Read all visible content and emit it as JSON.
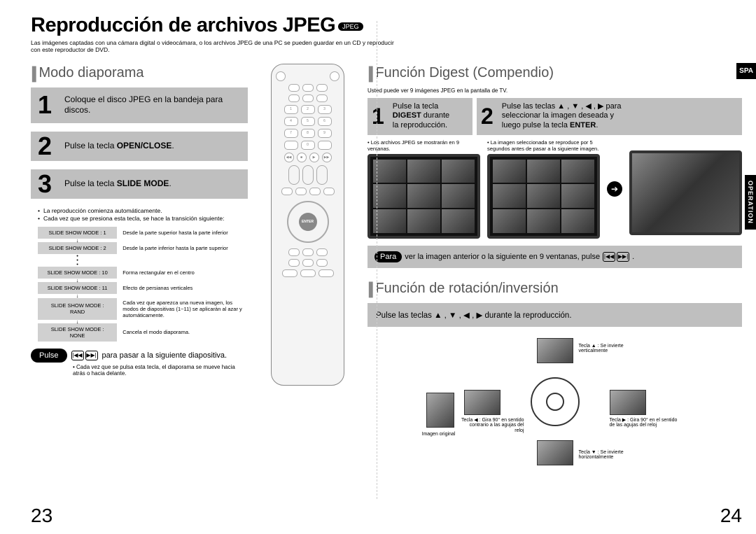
{
  "title": "Reproducción de archivos JPEG",
  "title_badge": "JPEG",
  "intro": "Las imágenes captadas con una cámara digital o videocámara, o los archivos JPEG de una PC se pueden guardar en un CD y reproducir con este reproductor de DVD.",
  "spa_tab": "SPA",
  "op_tab": "OPERATION",
  "page_left": "23",
  "page_right": "24",
  "left": {
    "section_title": "Modo diaporama",
    "step1_pre": "Coloque el disco JPEG en la bandeja para discos.",
    "step2_pre": "Pulse la tecla ",
    "step2_bold": "OPEN/CLOSE",
    "step2_post": ".",
    "step3_pre": "Pulse la tecla ",
    "step3_bold": "SLIDE MODE",
    "step3_post": ".",
    "bullet1": "La reproducción comienza automáticamente.",
    "bullet2": "Cada vez que se presiona esta tecla, se hace la transición siguiente:",
    "modes": [
      {
        "label": "SLIDE SHOW MODE : 1",
        "desc": "Desde la parte superior hasta la parte inferior"
      },
      {
        "label": "SLIDE SHOW MODE : 2",
        "desc": "Desde la parte inferior hasta la parte superior"
      },
      {
        "label": "SLIDE SHOW MODE : 10",
        "desc": "Forma rectangular en el centro"
      },
      {
        "label": "SLIDE SHOW MODE : 11",
        "desc": "Efecto de persianas verticales"
      },
      {
        "label": "SLIDE SHOW MODE : RAND",
        "desc": "Cada vez que aparezca una nueva imagen, los modos de diapositivas (1~11) se aplicarán al azar y automáticamente."
      },
      {
        "label": "SLIDE SHOW MODE : NONE",
        "desc": "Cancela el modo diaporama."
      }
    ],
    "footer_pill": "Pulse",
    "footer_text": "para pasar a la siguiente diapositiva.",
    "footer_sub": "• Cada vez que se pulsa esta tecla, el diaporama se mueve hacia atrás o hacia delante."
  },
  "remote": {
    "enter": "ENTER"
  },
  "right": {
    "digest_title": "Función Digest (Compendio)",
    "digest_sub": "Usted puede ver 9 imágenes JPEG en la pantalla de TV.",
    "d1_l1": "Pulse la tecla",
    "d1_l2_bold": "DIGEST",
    "d1_l2_post": " durante",
    "d1_l3": "la reproducción.",
    "d2_l1": "Pulse las teclas ▲ , ▼ , ◀ , ▶ para",
    "d2_l2": "seleccionar la imagen deseada y",
    "d2_l3_pre": "luego pulse la tecla ",
    "d2_l3_bold": "ENTER",
    "d2_l3_post": ".",
    "tv1_cap": "• Los archivos JPEG se mostrarán en 9 ventanas.",
    "tv2_cap": "• La imagen seleccionada se reproduce por 5 segundos antes de pasar a la siguiente imagen.",
    "para_pill": "Para",
    "para_text": "ver la imagen anterior o la siguiente en 9 ventanas, pulse",
    "rot_title": "Función de rotación/inversión",
    "rot_bar": "Pulse las teclas ▲ , ▼ , ◀ , ▶  durante la reproducción.",
    "rl_top": "Tecla ▲ : Se invierte verticalmente",
    "rl_bottom": "Tecla ▼ : Se invierte horizontalmente",
    "rl_left": "Tecla ◀ : Gira 90° en sentido contrario a las agujas del reloj",
    "rl_right": "Tecla ▶ : Gira 90° en el sentido de las agujas del reloj",
    "rl_orig": "Imagen original"
  },
  "colors": {
    "step_bg": "#bfbfbf",
    "text": "#000000",
    "section_title": "#555555"
  }
}
